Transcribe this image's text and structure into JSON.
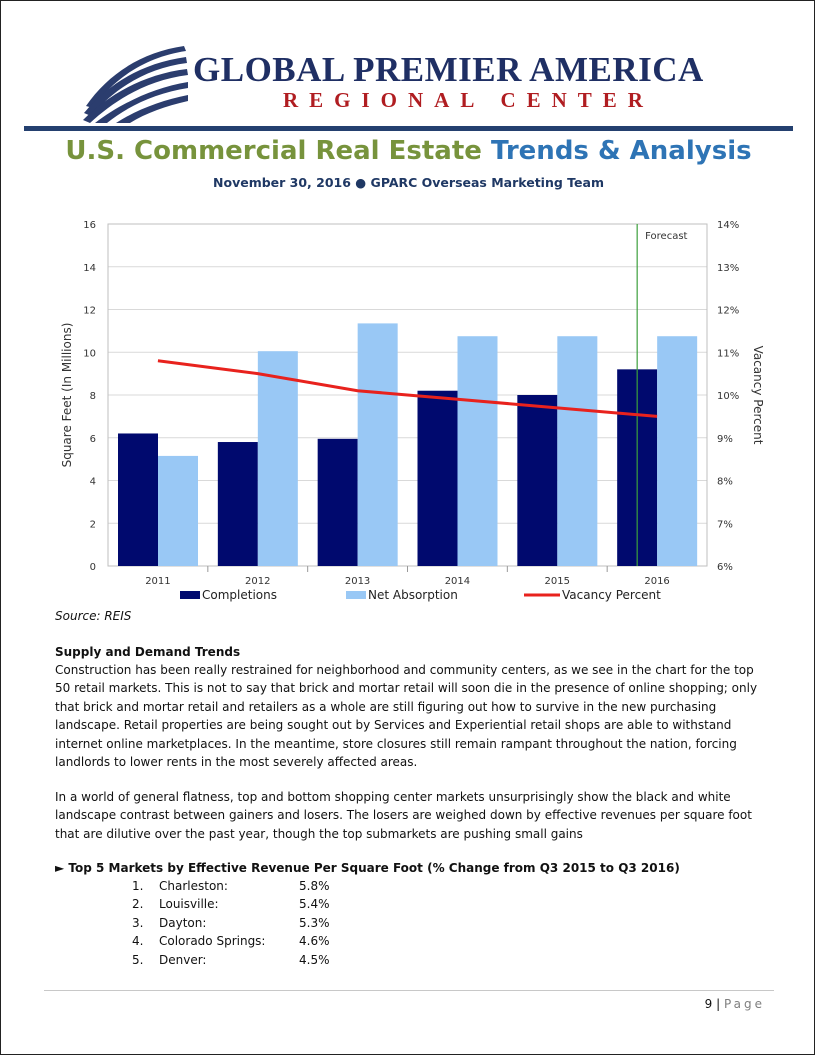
{
  "header": {
    "logo_title": "GLOBAL PREMIER AMERICA",
    "logo_subtitle": "REGIONAL CENTER"
  },
  "title": {
    "part1": "U.S. Commercial Real Estate",
    "part2": "Trends & Analysis",
    "subtitle": "November 30, 2016 ● GPARC Overseas Marketing Team"
  },
  "colors": {
    "completions": "#00096e",
    "net_absorption": "#99c8f5",
    "vacancy": "#e8221d",
    "forecast_line": "#3c9f3c",
    "title_green": "#77933c",
    "title_blue": "#2e74b5",
    "logo_navy": "#1f2f64",
    "logo_red": "#b01d21"
  },
  "chart_data": {
    "type": "bar",
    "categories": [
      "2011",
      "2012",
      "2013",
      "2014",
      "2015",
      "2016"
    ],
    "series": [
      {
        "name": "Completions",
        "type": "bar",
        "axis": "left",
        "values": [
          6.2,
          5.8,
          5.95,
          8.2,
          8.0,
          9.2
        ]
      },
      {
        "name": "Net Absorption",
        "type": "bar",
        "axis": "left",
        "values": [
          5.15,
          10.05,
          11.35,
          10.75,
          10.75,
          10.75
        ]
      },
      {
        "name": "Vacancy Percent",
        "type": "line",
        "axis": "right",
        "values": [
          10.8,
          10.5,
          10.1,
          9.9,
          9.7,
          9.5
        ]
      }
    ],
    "ylabel": "Square Feet (In Millions)",
    "y2label": "Vacancy Percent",
    "ylim": [
      0,
      16
    ],
    "yticks": [
      "0",
      "2",
      "4",
      "6",
      "8",
      "10",
      "12",
      "14",
      "16"
    ],
    "y2lim": [
      6,
      14
    ],
    "y2ticks": [
      "6%",
      "7%",
      "8%",
      "9%",
      "10%",
      "11%",
      "12%",
      "13%",
      "14%"
    ],
    "annotation": "Forecast",
    "legend": [
      "Completions",
      "Net Absorption",
      "Vacancy Percent"
    ],
    "legend_position": "bottom"
  },
  "source": "Source: REIS",
  "supply": {
    "heading": "Supply and Demand Trends",
    "paragraph1": "Construction has been really restrained for neighborhood and community centers, as we see in the chart for the top 50 retail markets. This is not to say that brick and mortar retail will soon die in the presence of online shopping; only that brick and mortar retail and retailers as a whole are still figuring out how to survive in the new purchasing landscape. Retail properties are being sought out by Services and Experiential retail shops are able to withstand internet online marketplaces.  In the meantime, store closures still remain rampant throughout the nation, forcing landlords to lower rents in the most severely affected areas.",
    "paragraph2": "In a world of general flatness, top and bottom shopping center markets unsurprisingly show the black and white landscape contrast between gainers and losers. The losers are weighed down by effective revenues per square foot that are dilutive over the past year, though the top submarkets are pushing small gains"
  },
  "top5": {
    "heading": "► Top 5 Markets by Effective Revenue Per Square Foot (% Change from Q3 2015 to Q3 2016)",
    "items": [
      {
        "num": "1.",
        "name": "Charleston:",
        "value": "5.8%"
      },
      {
        "num": "2.",
        "name": "Louisville:",
        "value": "5.4%"
      },
      {
        "num": "3.",
        "name": "Dayton:",
        "value": "5.3%"
      },
      {
        "num": "4.",
        "name": "Colorado Springs:",
        "value": "4.6%"
      },
      {
        "num": "5.",
        "name": "Denver:",
        "value": "4.5%"
      }
    ]
  },
  "footer": {
    "page_number": "9",
    "separator": "|",
    "page_word": "Page"
  }
}
